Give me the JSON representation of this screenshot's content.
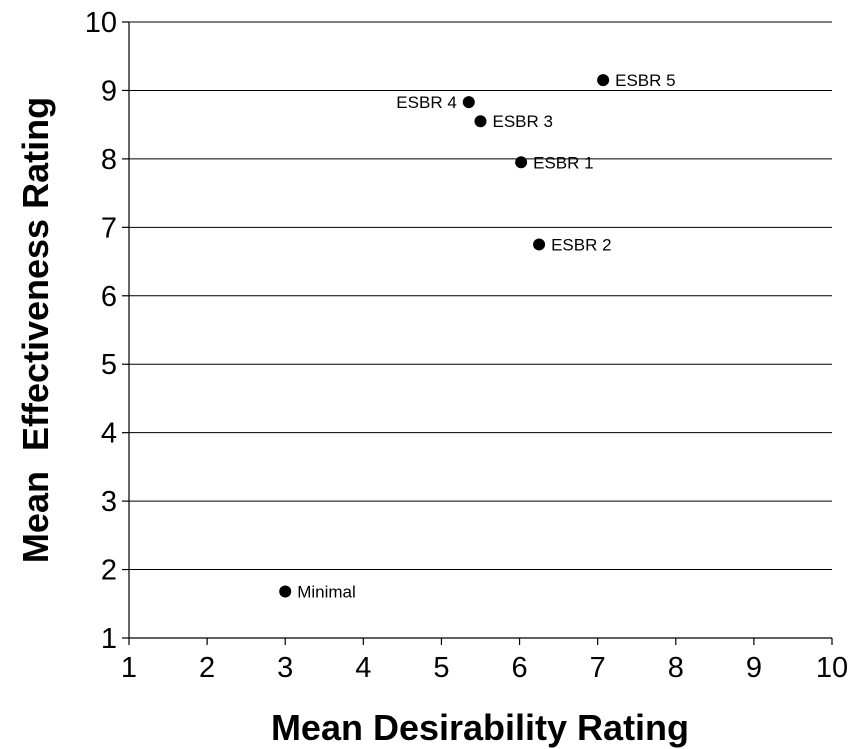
{
  "chart_data": {
    "type": "scatter",
    "title": "",
    "xlabel": "Mean Desirability Rating",
    "ylabel": "Mean  Effectiveness Rating",
    "xlim": [
      1,
      10
    ],
    "ylim": [
      1,
      10
    ],
    "xticks": [
      1,
      2,
      3,
      4,
      5,
      6,
      7,
      8,
      9,
      10
    ],
    "yticks": [
      1,
      2,
      3,
      4,
      5,
      6,
      7,
      8,
      9,
      10
    ],
    "grid": "horizontal",
    "legend": "none",
    "marker_color": "#000000",
    "points": [
      {
        "label": "ESBR 5",
        "x": 7.07,
        "y": 9.15,
        "label_side": "right"
      },
      {
        "label": "ESBR 4",
        "x": 5.35,
        "y": 8.83,
        "label_side": "left"
      },
      {
        "label": "ESBR 3",
        "x": 5.5,
        "y": 8.55,
        "label_side": "right"
      },
      {
        "label": "ESBR 1",
        "x": 6.02,
        "y": 7.95,
        "label_side": "right"
      },
      {
        "label": "ESBR 2",
        "x": 6.25,
        "y": 6.75,
        "label_side": "right"
      },
      {
        "label": "Minimal",
        "x": 3.0,
        "y": 1.68,
        "label_side": "right"
      }
    ]
  }
}
